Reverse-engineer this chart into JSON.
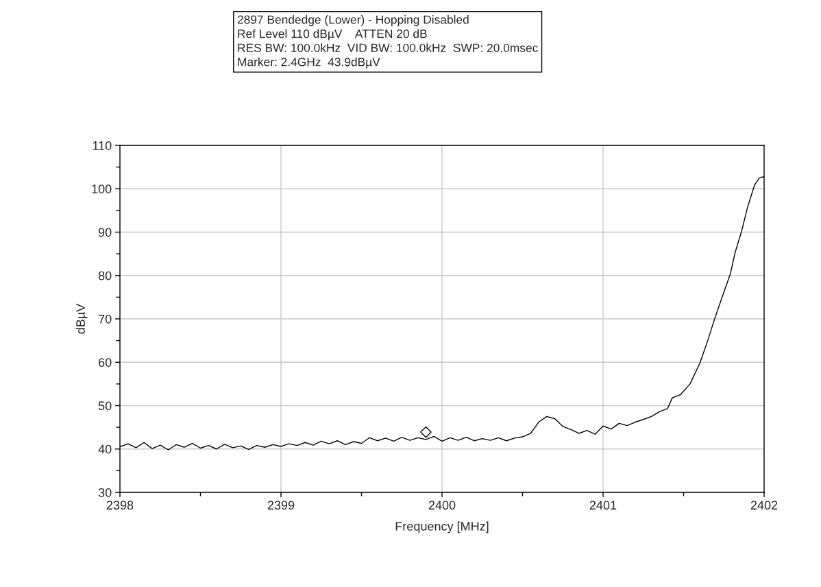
{
  "chart_data": {
    "type": "line",
    "title": "2897 Bendedge (Lower) - Hopping Disabled",
    "annotations": [
      "Ref Level 110 dBµV    ATTEN 20 dB",
      "RES BW: 100.0kHz  VID BW: 100.0kHz  SWP: 20.0msec",
      "Marker: 2.4GHz  43.9dBµV"
    ],
    "xlabel": "Frequency [MHz]",
    "ylabel": "dBµV",
    "xlim": [
      2398,
      2402
    ],
    "xticks": [
      2398,
      {
        "value": 2398.5,
        "label": null
      },
      2399,
      {
        "value": 2399.5,
        "label": null
      },
      2400,
      {
        "value": 2400.5,
        "label": null
      },
      2401,
      {
        "value": 2401.5,
        "label": null
      },
      2402
    ],
    "ylim": [
      30,
      110
    ],
    "yticks": [
      30,
      {
        "value": 35,
        "label": null
      },
      40,
      {
        "value": 45,
        "label": null
      },
      50,
      {
        "value": 55,
        "label": null
      },
      60,
      {
        "value": 65,
        "label": null
      },
      70,
      {
        "value": 75,
        "label": null
      },
      80,
      {
        "value": 85,
        "label": null
      },
      90,
      {
        "value": 95,
        "label": null
      },
      100,
      {
        "value": 105,
        "label": null
      },
      110
    ],
    "grid": true,
    "series": [
      {
        "color": "#000000",
        "marker": "none",
        "x": [
          2398.0,
          2398.05,
          2398.1,
          2398.15,
          2398.2,
          2398.25,
          2398.3,
          2398.35,
          2398.4,
          2398.45,
          2398.5,
          2398.55,
          2398.6,
          2398.65,
          2398.7,
          2398.75,
          2398.8,
          2398.85,
          2398.9,
          2398.95,
          2399.0,
          2399.05,
          2399.1,
          2399.15,
          2399.2,
          2399.25,
          2399.3,
          2399.35,
          2399.4,
          2399.45,
          2399.5,
          2399.55,
          2399.6,
          2399.65,
          2399.7,
          2399.75,
          2399.8,
          2399.85,
          2399.9,
          2399.95,
          2400.0,
          2400.05,
          2400.1,
          2400.15,
          2400.2,
          2400.25,
          2400.3,
          2400.35,
          2400.4,
          2400.45,
          2400.5,
          2400.55,
          2400.6,
          2400.65,
          2400.7,
          2400.75,
          2400.8,
          2400.85,
          2400.9,
          2400.95,
          2401.0,
          2401.05,
          2401.1,
          2401.15,
          2401.2,
          2401.25,
          2401.3,
          2401.35,
          2401.4,
          2401.43,
          2401.48,
          2401.54,
          2401.6,
          2401.65,
          2401.69,
          2401.74,
          2401.79,
          2401.82,
          2401.86,
          2401.9,
          2401.94,
          2401.97,
          2402.0
        ],
        "values": [
          40.5,
          41.2,
          40.3,
          41.5,
          40.1,
          40.9,
          39.8,
          41.0,
          40.4,
          41.3,
          40.2,
          40.8,
          40.0,
          41.1,
          40.3,
          40.7,
          39.9,
          40.8,
          40.4,
          41.0,
          40.6,
          41.2,
          40.8,
          41.5,
          40.9,
          41.8,
          41.2,
          41.9,
          41.0,
          41.7,
          41.3,
          42.6,
          41.9,
          42.5,
          41.8,
          42.7,
          42.0,
          42.6,
          42.2,
          42.9,
          41.8,
          42.6,
          42.0,
          42.7,
          41.9,
          42.4,
          42.0,
          42.6,
          41.9,
          42.5,
          42.8,
          43.6,
          46.2,
          47.5,
          47.0,
          45.2,
          44.5,
          43.6,
          44.3,
          43.4,
          45.3,
          44.6,
          45.9,
          45.4,
          46.2,
          46.8,
          47.5,
          48.6,
          49.3,
          51.8,
          52.5,
          55.0,
          59.7,
          65.0,
          69.7,
          75.1,
          80.3,
          85.3,
          90.2,
          96.1,
          100.8,
          102.5,
          102.8
        ]
      },
      {
        "type": "scatter",
        "color": "#000000",
        "marker": "diamond",
        "x": [
          2399.9
        ],
        "values": [
          43.9
        ]
      }
    ]
  }
}
